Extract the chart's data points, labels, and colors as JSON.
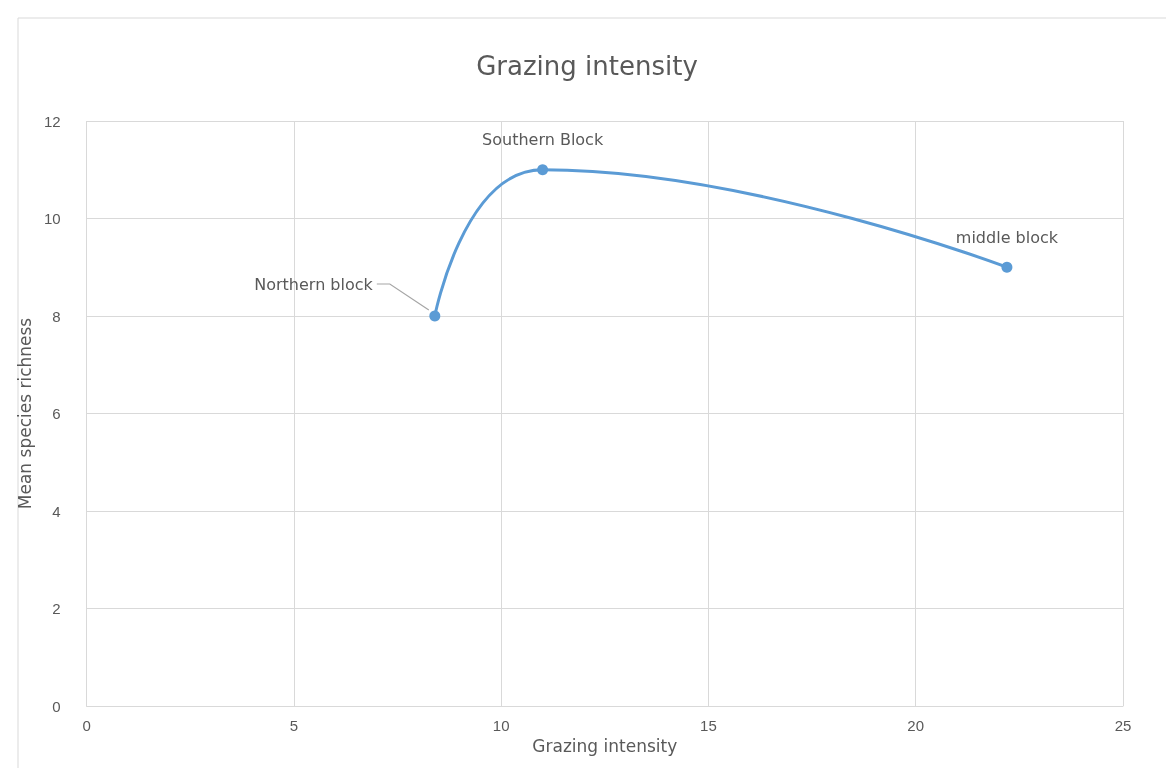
{
  "chart_data": {
    "type": "line",
    "title": "Grazing intensity",
    "xlabel": "Grazing intensity",
    "ylabel": "Mean species richness",
    "x": [
      8.4,
      11,
      22.2
    ],
    "series": [
      {
        "color": "#5b9bd5",
        "values": [
          8,
          11,
          9
        ]
      }
    ],
    "xlim": [
      0,
      25
    ],
    "xticks": [
      0,
      5,
      10,
      15,
      20,
      25
    ],
    "ylim": [
      0,
      12
    ],
    "yticks": [
      0,
      2,
      4,
      6,
      8,
      10,
      12
    ],
    "grid": true,
    "marker": "circle",
    "line_style": "solid",
    "annotations": [
      {
        "text": "Northern block",
        "x": 8.4,
        "y": 8
      },
      {
        "text": "Southern Block",
        "x": 11,
        "y": 11
      },
      {
        "text": "middle block",
        "x": 22.2,
        "y": 9
      }
    ]
  }
}
